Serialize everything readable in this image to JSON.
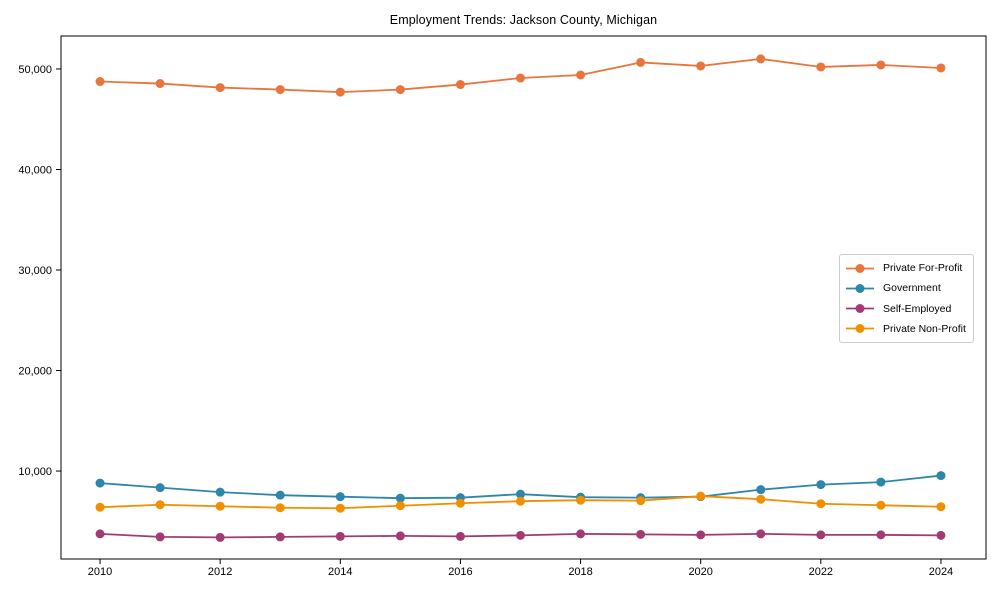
{
  "chart_data": {
    "type": "line",
    "title": "Employment Trends: Jackson County, Michigan",
    "xlabel": "",
    "ylabel": "",
    "grid": false,
    "legend_position": "center right",
    "marker": "circle",
    "x": [
      2010,
      2011,
      2012,
      2013,
      2014,
      2015,
      2016,
      2017,
      2018,
      2019,
      2020,
      2021,
      2022,
      2023,
      2024
    ],
    "series": [
      {
        "name": "Private For-Profit",
        "color": "#E8763C",
        "values": [
          48750,
          48550,
          48150,
          47950,
          47700,
          47950,
          48450,
          49100,
          49400,
          50650,
          50300,
          51000,
          50200,
          50400,
          50100
        ]
      },
      {
        "name": "Government",
        "color": "#2E86AB",
        "values": [
          8800,
          8350,
          7900,
          7600,
          7450,
          7300,
          7350,
          7700,
          7400,
          7350,
          7450,
          8150,
          8650,
          8900,
          9550
        ]
      },
      {
        "name": "Self-Employed",
        "color": "#A23B72",
        "values": [
          3750,
          3450,
          3400,
          3450,
          3500,
          3550,
          3500,
          3600,
          3750,
          3700,
          3650,
          3750,
          3650,
          3650,
          3600
        ]
      },
      {
        "name": "Private Non-Profit",
        "color": "#F18F01",
        "values": [
          6400,
          6650,
          6500,
          6350,
          6300,
          6550,
          6800,
          7000,
          7100,
          7050,
          7500,
          7200,
          6750,
          6600,
          6450
        ]
      }
    ],
    "xlim": [
      2009.35,
      2024.75
    ],
    "ylim": [
      1250,
      53280
    ],
    "x_ticks": [
      2010,
      2012,
      2014,
      2016,
      2018,
      2020,
      2022,
      2024
    ],
    "x_tick_labels": [
      "2010",
      "2012",
      "2014",
      "2016",
      "2018",
      "2020",
      "2022",
      "2024"
    ],
    "y_ticks": [
      10000,
      20000,
      30000,
      40000,
      50000
    ],
    "y_tick_labels": [
      "10,000",
      "20,000",
      "30,000",
      "40,000",
      "50,000"
    ],
    "axis_color": "#000000"
  }
}
